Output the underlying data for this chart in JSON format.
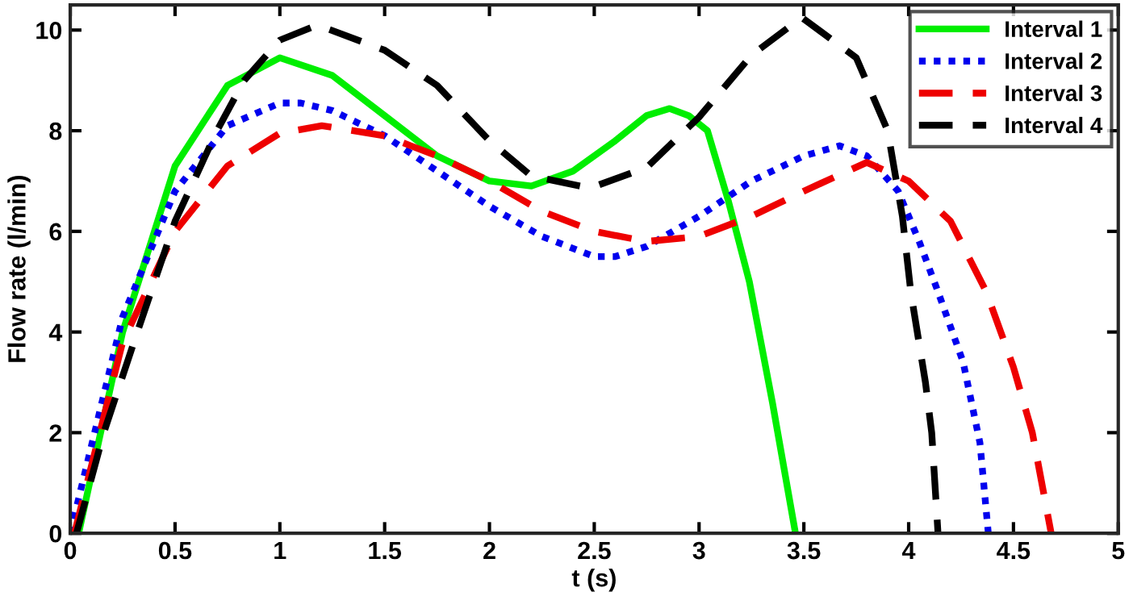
{
  "chart_data": {
    "type": "line",
    "xlabel": "t (s)",
    "ylabel": "Flow rate (l/min)",
    "xlim": [
      0,
      5
    ],
    "ylim": [
      0,
      10.5
    ],
    "xticks": [
      0,
      0.5,
      1,
      1.5,
      2,
      2.5,
      3,
      3.5,
      4,
      4.5,
      5
    ],
    "yticks": [
      0,
      2,
      4,
      6,
      8,
      10
    ],
    "grid": false,
    "legend": "top right",
    "series": [
      {
        "name": "Interval 1",
        "color": "#00ee00",
        "line_style": "solid",
        "x": [
          0.04,
          0.25,
          0.5,
          0.75,
          1.0,
          1.25,
          1.5,
          1.75,
          2.0,
          2.2,
          2.4,
          2.6,
          2.75,
          2.86,
          2.95,
          3.04,
          3.14,
          3.24,
          3.35,
          3.46
        ],
        "values": [
          0,
          4.0,
          7.3,
          8.9,
          9.45,
          9.1,
          8.3,
          7.5,
          7.0,
          6.9,
          7.2,
          7.8,
          8.3,
          8.44,
          8.3,
          8.0,
          6.6,
          5.0,
          2.6,
          0
        ]
      },
      {
        "name": "Interval 2",
        "color": "#0000ee",
        "line_style": "dotted",
        "x": [
          0.0,
          0.25,
          0.5,
          0.75,
          1.0,
          1.1,
          1.25,
          1.5,
          1.75,
          2.0,
          2.25,
          2.5,
          2.6,
          2.75,
          3.0,
          3.25,
          3.5,
          3.67,
          3.8,
          3.95,
          4.05,
          4.14,
          4.26,
          4.34,
          4.38
        ],
        "values": [
          0,
          4.3,
          6.8,
          8.1,
          8.55,
          8.55,
          8.4,
          7.9,
          7.2,
          6.5,
          5.9,
          5.5,
          5.5,
          5.7,
          6.3,
          7.0,
          7.5,
          7.7,
          7.5,
          6.8,
          5.8,
          4.8,
          3.4,
          1.8,
          0
        ]
      },
      {
        "name": "Interval 3",
        "color": "#ee0000",
        "line_style": "dashed",
        "x": [
          0.02,
          0.25,
          0.5,
          0.75,
          1.0,
          1.2,
          1.5,
          1.75,
          2.0,
          2.25,
          2.5,
          2.75,
          3.0,
          3.25,
          3.5,
          3.8,
          4.0,
          4.2,
          4.37,
          4.5,
          4.59,
          4.68
        ],
        "values": [
          0,
          3.8,
          6.0,
          7.3,
          7.95,
          8.1,
          7.9,
          7.5,
          7.0,
          6.4,
          6.0,
          5.8,
          5.9,
          6.3,
          6.8,
          7.37,
          7.0,
          6.2,
          4.8,
          3.3,
          2.0,
          0
        ]
      },
      {
        "name": "Interval 4",
        "color": "#000000",
        "line_style": "dashed",
        "x": [
          0.03,
          0.16,
          0.32,
          0.5,
          0.7,
          0.83,
          1.0,
          1.18,
          1.5,
          1.75,
          2.0,
          2.2,
          2.48,
          2.75,
          3.0,
          3.25,
          3.49,
          3.75,
          3.9,
          3.97,
          4.01,
          4.08,
          4.11,
          4.14
        ],
        "values": [
          0,
          2.0,
          4.0,
          6.2,
          8.0,
          9.0,
          9.8,
          10.1,
          9.6,
          8.9,
          7.8,
          7.1,
          6.86,
          7.27,
          8.27,
          9.5,
          10.25,
          9.45,
          8.0,
          6.3,
          4.8,
          3.0,
          2.0,
          0
        ]
      }
    ]
  }
}
